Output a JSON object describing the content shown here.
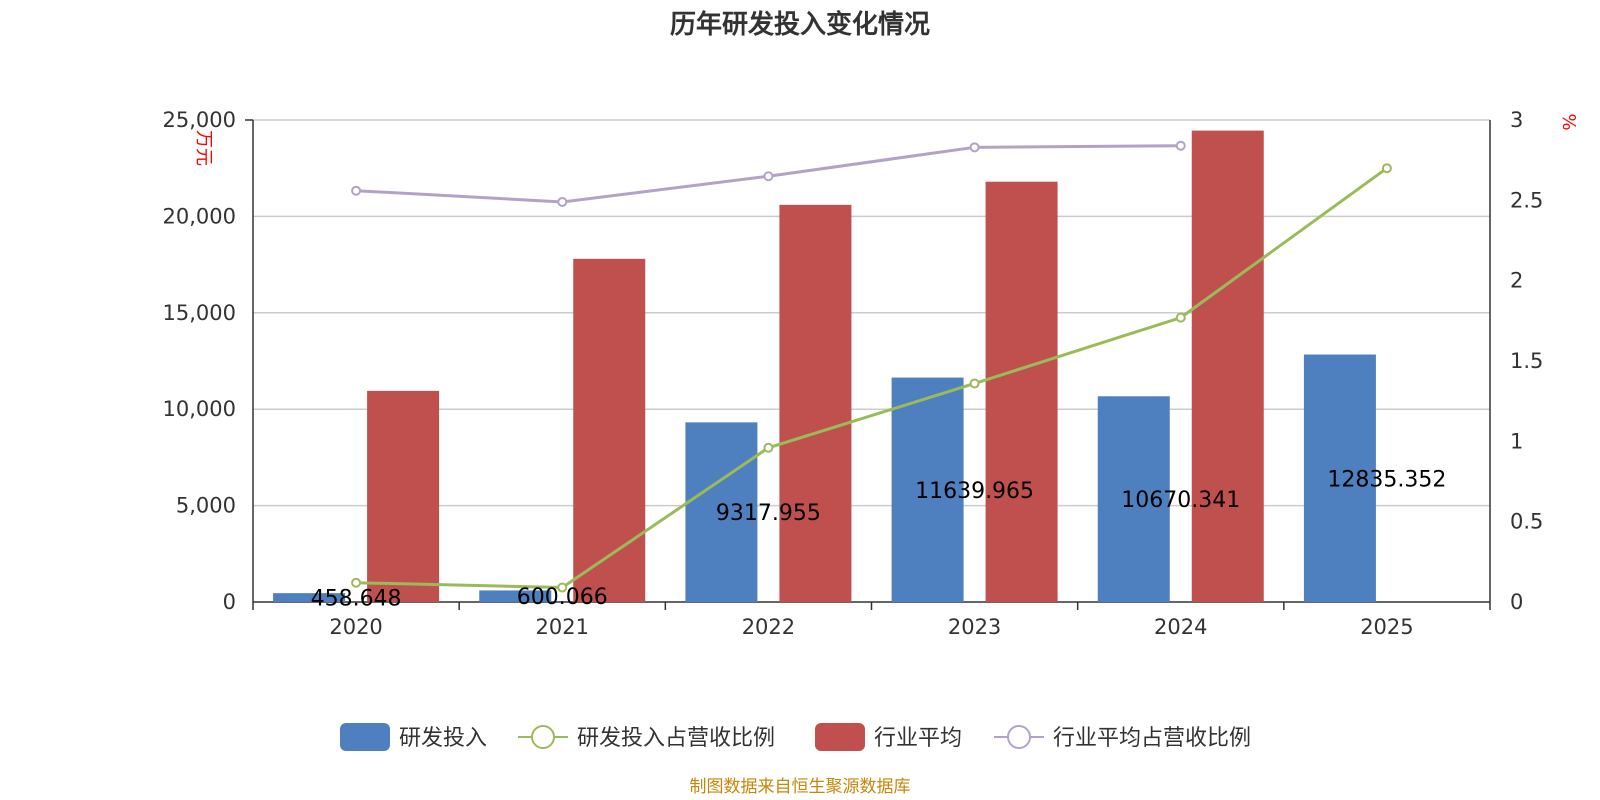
{
  "chart_data": {
    "type": "bar",
    "title": "历年研发投入变化情况",
    "categories": [
      "2020",
      "2021",
      "2022",
      "2023",
      "2024",
      "2025"
    ],
    "y_left": {
      "label": "万元",
      "min": 0,
      "max": 25000,
      "ticks": [
        "0",
        "5,000",
        "10,000",
        "15,000",
        "20,000",
        "25,000"
      ]
    },
    "y_right": {
      "label": "%",
      "min": 0,
      "max": 3,
      "ticks": [
        "0",
        "0.5",
        "1",
        "1.5",
        "2",
        "2.5",
        "3"
      ]
    },
    "grid": true,
    "legend_position": "bottom",
    "series": [
      {
        "name": "研发投入",
        "type": "bar",
        "axis": "left",
        "color": "#4e7fbe",
        "values": [
          458.648,
          600.066,
          9317.955,
          11639.965,
          10670.341,
          12835.352
        ],
        "labels": [
          "458.648",
          "600.066",
          "9317.955",
          "11639.965",
          "10670.341",
          "12835.352"
        ]
      },
      {
        "name": "研发投入占营收比例",
        "type": "line",
        "axis": "right",
        "color": "#9bbb59",
        "values": [
          0.12,
          0.09,
          0.96,
          1.36,
          1.77,
          2.7
        ]
      },
      {
        "name": "行业平均",
        "type": "bar",
        "axis": "left",
        "color": "#c0504d",
        "values": [
          10950,
          17800,
          20600,
          21800,
          24450,
          null
        ]
      },
      {
        "name": "行业平均占营收比例",
        "type": "line",
        "axis": "right",
        "color": "#b3a2c7",
        "values": [
          2.56,
          2.49,
          2.65,
          2.83,
          2.84,
          null
        ]
      }
    ],
    "source": "制图数据来自恒生聚源数据库"
  }
}
